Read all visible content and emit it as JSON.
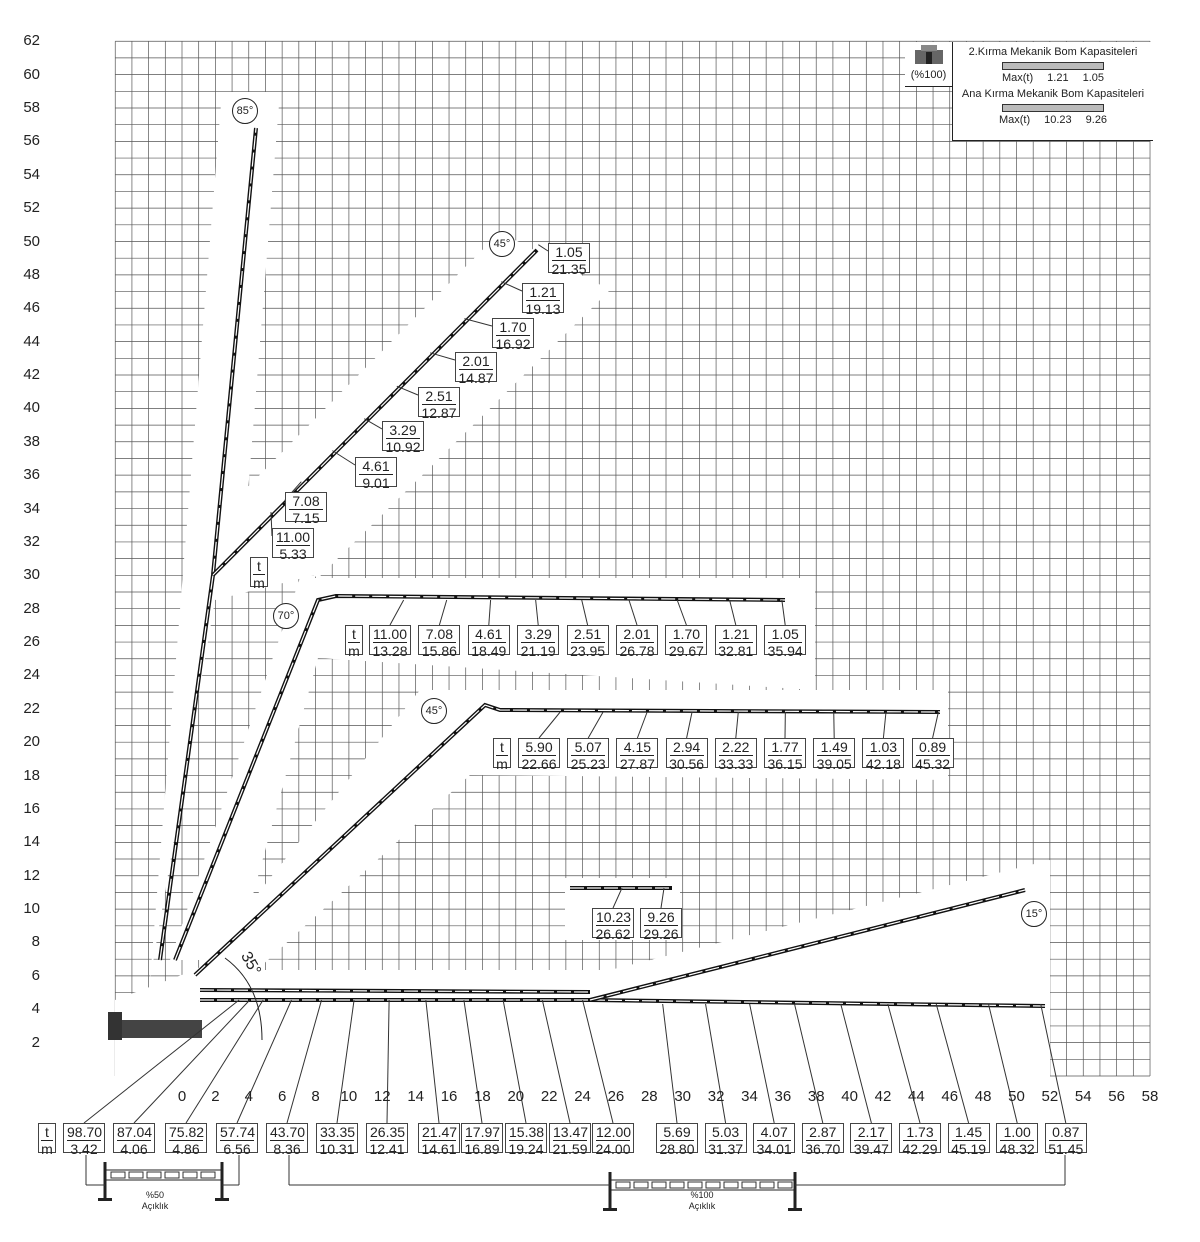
{
  "axes": {
    "y_ticks": [
      "2",
      "4",
      "6",
      "8",
      "10",
      "12",
      "14",
      "16",
      "18",
      "20",
      "22",
      "24",
      "26",
      "28",
      "30",
      "32",
      "34",
      "36",
      "38",
      "40",
      "42",
      "44",
      "46",
      "48",
      "50",
      "52",
      "54",
      "56",
      "58",
      "60",
      "62"
    ],
    "x_ticks": [
      "0",
      "2",
      "4",
      "6",
      "8",
      "10",
      "12",
      "14",
      "16",
      "18",
      "20",
      "22",
      "24",
      "26",
      "28",
      "30",
      "32",
      "34",
      "36",
      "38",
      "40",
      "42",
      "44",
      "46",
      "48",
      "50",
      "52",
      "54",
      "56",
      "58"
    ]
  },
  "legend": {
    "icon_label": "(%100)",
    "title1": "2.Kırma Mekanik Bom Kapasiteleri",
    "max1": "Max(t)",
    "v1a": "1.21",
    "v1b": "1.05",
    "title2": "Ana Kırma Mekanik Bom Kapasiteleri",
    "max2": "Max(t)",
    "v2a": "10.23",
    "v2b": "9.26"
  },
  "unit": {
    "t": "t",
    "m": "m"
  },
  "angles": [
    "85°",
    "45°",
    "70°",
    "45°",
    "15°",
    "35°"
  ],
  "outriggers": {
    "half": {
      "pct": "%50",
      "label": "Açıklık"
    },
    "full": {
      "pct": "%100",
      "label": "Açıklık"
    }
  },
  "chart_data": {
    "type": "load-chart",
    "xlim": [
      -4,
      58
    ],
    "ylim": [
      0,
      62
    ],
    "grid": true,
    "colors": {
      "boom": "#111111",
      "grid": "#555555"
    },
    "configurations": [
      {
        "angle": "45°",
        "points": [
          {
            "t": "1.05",
            "m": "21.35"
          },
          {
            "t": "1.21",
            "m": "19.13"
          },
          {
            "t": "1.70",
            "m": "16.92"
          },
          {
            "t": "2.01",
            "m": "14.87"
          },
          {
            "t": "2.51",
            "m": "12.87"
          },
          {
            "t": "3.29",
            "m": "10.92"
          },
          {
            "t": "4.61",
            "m": "9.01"
          },
          {
            "t": "7.08",
            "m": "7.15"
          },
          {
            "t": "11.00",
            "m": "5.33"
          }
        ]
      },
      {
        "angle": "70°",
        "points": [
          {
            "t": "11.00",
            "m": "13.28"
          },
          {
            "t": "7.08",
            "m": "15.86"
          },
          {
            "t": "4.61",
            "m": "18.49"
          },
          {
            "t": "3.29",
            "m": "21.19"
          },
          {
            "t": "2.51",
            "m": "23.95"
          },
          {
            "t": "2.01",
            "m": "26.78"
          },
          {
            "t": "1.70",
            "m": "29.67"
          },
          {
            "t": "1.21",
            "m": "32.81"
          },
          {
            "t": "1.05",
            "m": "35.94"
          }
        ]
      },
      {
        "angle": "45°",
        "points": [
          {
            "t": "5.90",
            "m": "22.66"
          },
          {
            "t": "5.07",
            "m": "25.23"
          },
          {
            "t": "4.15",
            "m": "27.87"
          },
          {
            "t": "2.94",
            "m": "30.56"
          },
          {
            "t": "2.22",
            "m": "33.33"
          },
          {
            "t": "1.77",
            "m": "36.15"
          },
          {
            "t": "1.49",
            "m": "39.05"
          },
          {
            "t": "1.03",
            "m": "42.18"
          },
          {
            "t": "0.89",
            "m": "45.32"
          }
        ]
      },
      {
        "angle": "35°",
        "points": [
          {
            "t": "98.70",
            "m": "3.42"
          },
          {
            "t": "87.04",
            "m": "4.06"
          },
          {
            "t": "75.82",
            "m": "4.86"
          },
          {
            "t": "57.74",
            "m": "6.56"
          },
          {
            "t": "43.70",
            "m": "8.36"
          },
          {
            "t": "33.35",
            "m": "10.31"
          },
          {
            "t": "26.35",
            "m": "12.41"
          },
          {
            "t": "21.47",
            "m": "14.61"
          },
          {
            "t": "17.97",
            "m": "16.89"
          },
          {
            "t": "15.38",
            "m": "19.24"
          },
          {
            "t": "13.47",
            "m": "21.59"
          },
          {
            "t": "12.00",
            "m": "24.00"
          }
        ]
      },
      {
        "angle": "15°",
        "points": [
          {
            "t": "5.69",
            "m": "28.80"
          },
          {
            "t": "5.03",
            "m": "31.37"
          },
          {
            "t": "4.07",
            "m": "34.01"
          },
          {
            "t": "2.87",
            "m": "36.70"
          },
          {
            "t": "2.17",
            "m": "39.47"
          },
          {
            "t": "1.73",
            "m": "42.29"
          },
          {
            "t": "1.45",
            "m": "45.19"
          },
          {
            "t": "1.00",
            "m": "48.32"
          },
          {
            "t": "0.87",
            "m": "51.45"
          }
        ]
      },
      {
        "angle": "",
        "points": [
          {
            "t": "10.23",
            "m": "26.62"
          },
          {
            "t": "9.26",
            "m": "29.26"
          }
        ]
      }
    ]
  }
}
